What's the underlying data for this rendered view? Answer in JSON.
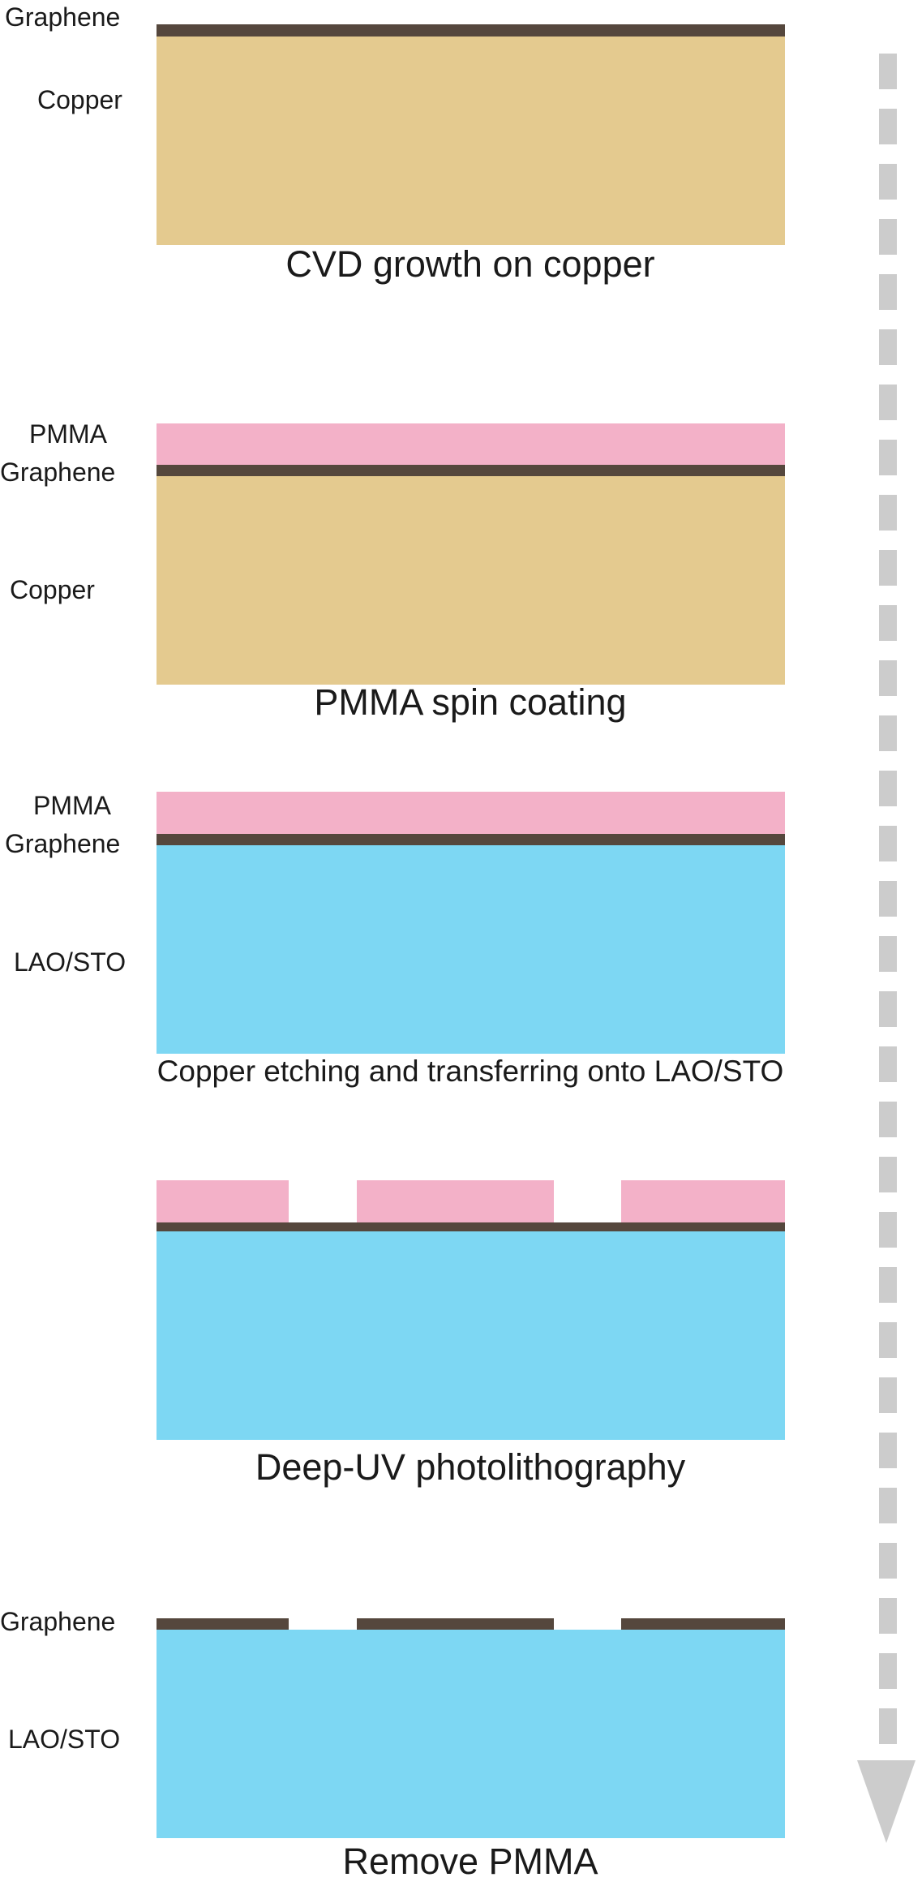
{
  "steps": [
    {
      "caption": "CVD growth on copper",
      "layers": {
        "graphene": "Graphene",
        "substrate": "Copper"
      }
    },
    {
      "caption": "PMMA spin coating",
      "layers": {
        "pmma": "PMMA",
        "graphene": "Graphene",
        "substrate": "Copper"
      }
    },
    {
      "caption": "Copper etching and transferring onto LAO/STO",
      "layers": {
        "pmma": "PMMA",
        "graphene": "Graphene",
        "substrate": "LAO/STO"
      }
    },
    {
      "caption": "Deep-UV photolithography"
    },
    {
      "caption": "Remove PMMA",
      "layers": {
        "graphene": "Graphene",
        "substrate": "LAO/STO"
      }
    }
  ],
  "colors": {
    "copper": "#e4ca8f",
    "pmma": "#f3b1c8",
    "graphene": "#55473d",
    "substrate": "#7dd7f3",
    "arrow": "#cccccc"
  },
  "icons": {
    "flow": "dashed-down-arrow-icon"
  }
}
